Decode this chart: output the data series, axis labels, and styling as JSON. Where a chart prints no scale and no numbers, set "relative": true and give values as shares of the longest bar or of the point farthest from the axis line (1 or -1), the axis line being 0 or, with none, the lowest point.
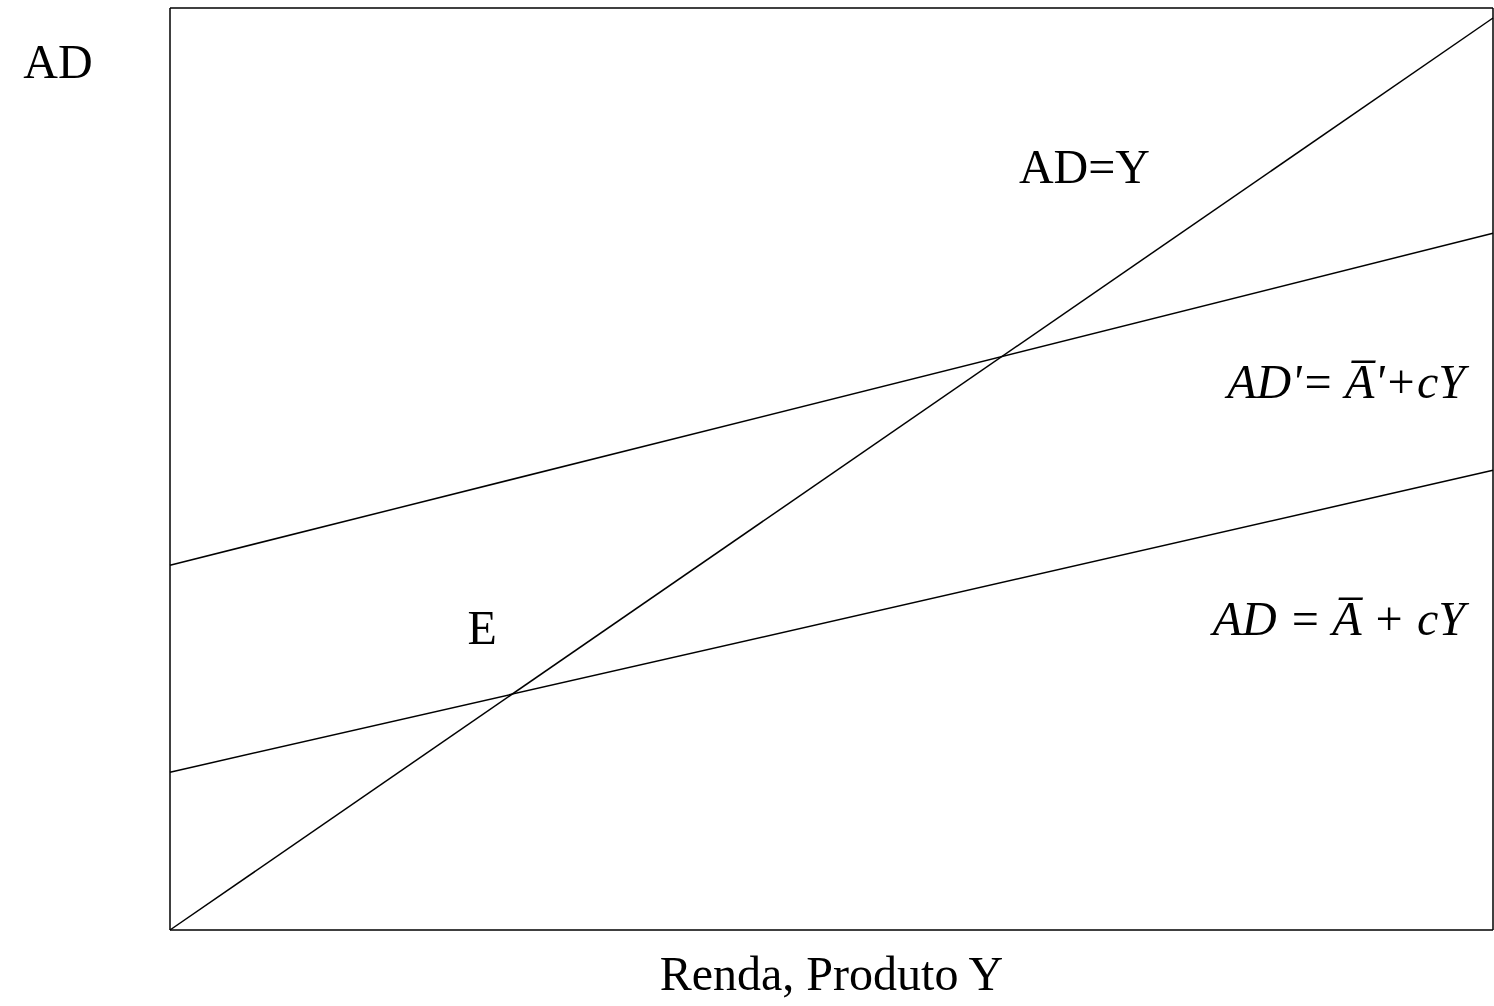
{
  "chart_data": {
    "type": "line",
    "relative": true,
    "ylabel": "AD",
    "xlabel": "Renda, Produto Y",
    "categories": [
      null,
      null
    ],
    "legend": false,
    "grid": false,
    "marker": "none",
    "line_style": "solid",
    "annotations": [
      "E"
    ],
    "series": [
      {
        "name": "AD=Y",
        "color": "#000000",
        "values": [
          0,
          1
        ]
      },
      {
        "name": "AD'= A̅'+cY",
        "color": "#000000",
        "values": [
          0.4,
          0.764
        ]
      },
      {
        "name": "AD = A̅ + cY",
        "color": "#000000",
        "values": [
          0.173,
          0.504
        ]
      }
    ]
  }
}
